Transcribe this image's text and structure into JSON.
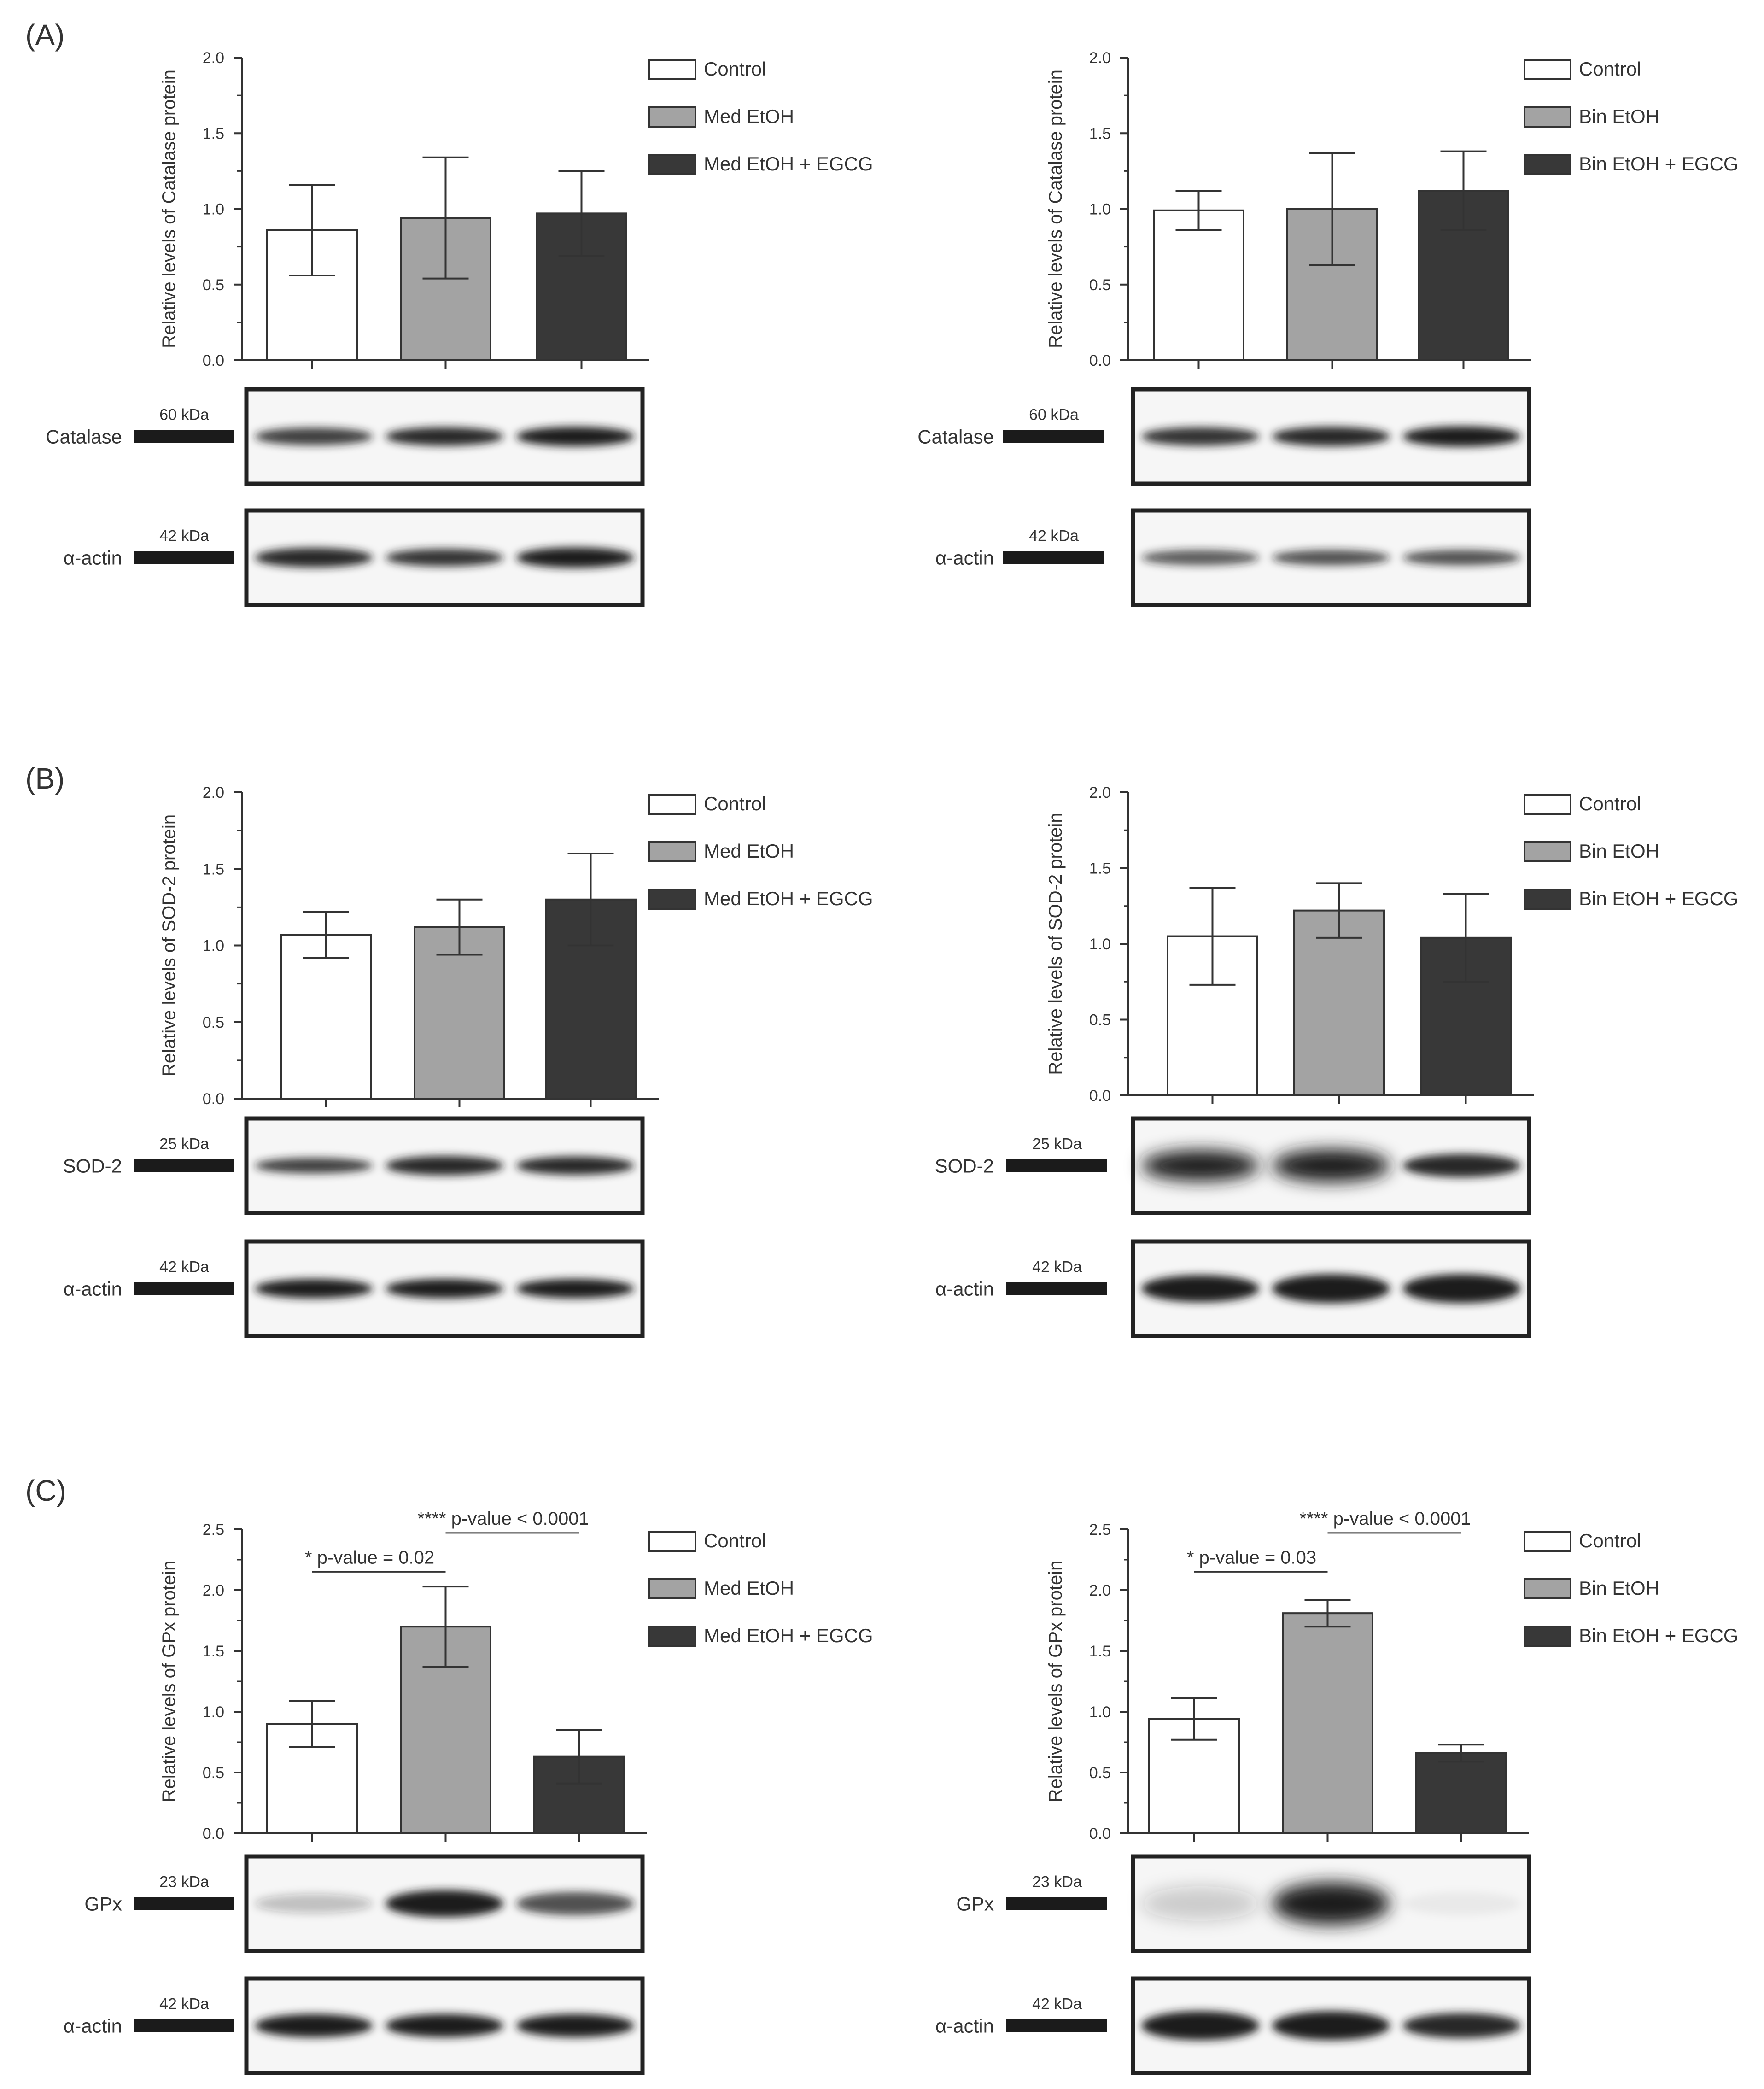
{
  "figure": {
    "colors": {
      "control": "#ffffff",
      "med_etoh": "#a3a3a3",
      "med_etoh_egcg": "#383838",
      "axis": "#333333",
      "band": "#1e1e1e"
    },
    "panels": [
      {
        "label": "(A)",
        "protein": "Catalase",
        "protein_kda": "60 kDa",
        "loading_control": "α-actin",
        "loading_kda": "42 kDa"
      },
      {
        "label": "(B)",
        "protein": "SOD-2",
        "protein_kda": "25 kDa",
        "loading_control": "α-actin",
        "loading_kda": "42 kDa"
      },
      {
        "label": "(C)",
        "protein": "GPx",
        "protein_kda": "23 kDa",
        "loading_control": "α-actin",
        "loading_kda": "42 kDa"
      }
    ]
  },
  "chart_data": [
    {
      "type": "bar",
      "panel": "(A)",
      "side": "left",
      "ylabel": "Relative levels of Catalase protein",
      "ylim": [
        0,
        2.0
      ],
      "yticks": [
        "0.0",
        "0.5",
        "1.0",
        "1.5",
        "2.0"
      ],
      "categories": [
        "Control",
        "Med EtOH",
        "Med EtOH + EGCG"
      ],
      "legend": [
        "Control",
        "Med EtOH",
        "Med EtOH + EGCG"
      ],
      "values": [
        0.86,
        0.94,
        0.97
      ],
      "errors": [
        0.3,
        0.4,
        0.28
      ],
      "annotations": []
    },
    {
      "type": "bar",
      "panel": "(A)",
      "side": "right",
      "ylabel": "Relative levels of Catalase protein",
      "ylim": [
        0,
        2.0
      ],
      "yticks": [
        "0.0",
        "0.5",
        "1.0",
        "1.5",
        "2.0"
      ],
      "categories": [
        "Control",
        "Bin EtOH",
        "Bin EtOH + EGCG"
      ],
      "legend": [
        "Control",
        "Bin EtOH",
        "Bin EtOH + EGCG"
      ],
      "values": [
        0.99,
        1.0,
        1.12
      ],
      "errors": [
        0.13,
        0.37,
        0.26
      ],
      "annotations": []
    },
    {
      "type": "bar",
      "panel": "(B)",
      "side": "left",
      "ylabel": "Relative levels of SOD-2 protein",
      "ylim": [
        0,
        2.0
      ],
      "yticks": [
        "0.0",
        "0.5",
        "1.0",
        "1.5",
        "2.0"
      ],
      "categories": [
        "Control",
        "Med EtOH",
        "Med EtOH + EGCG"
      ],
      "legend": [
        "Control",
        "Med EtOH",
        "Med EtOH + EGCG"
      ],
      "values": [
        1.07,
        1.12,
        1.3
      ],
      "errors": [
        0.15,
        0.18,
        0.3
      ],
      "annotations": []
    },
    {
      "type": "bar",
      "panel": "(B)",
      "side": "right",
      "ylabel": "Relative levels of SOD-2 protein",
      "ylim": [
        0,
        2.0
      ],
      "yticks": [
        "0.0",
        "0.5",
        "1.0",
        "1.5",
        "2.0"
      ],
      "categories": [
        "Control",
        "Bin EtOH",
        "Bin EtOH + EGCG"
      ],
      "legend": [
        "Control",
        "Bin EtOH",
        "Bin EtOH + EGCG"
      ],
      "values": [
        1.05,
        1.22,
        1.04
      ],
      "errors": [
        0.32,
        0.18,
        0.29
      ],
      "annotations": []
    },
    {
      "type": "bar",
      "panel": "(C)",
      "side": "left",
      "ylabel": "Relative levels of GPx protein",
      "ylim": [
        0,
        2.5
      ],
      "yticks": [
        "0.0",
        "0.5",
        "1.0",
        "1.5",
        "2.0",
        "2.5"
      ],
      "categories": [
        "Control",
        "Med EtOH",
        "Med EtOH + EGCG"
      ],
      "legend": [
        "Control",
        "Med EtOH",
        "Med EtOH + EGCG"
      ],
      "values": [
        0.9,
        1.7,
        0.63
      ],
      "errors": [
        0.19,
        0.33,
        0.22
      ],
      "annotations": [
        {
          "text": "* p-value = 0.02",
          "from": 0,
          "to": 1,
          "y": 2.15,
          "level": 0
        },
        {
          "text": "**** p-value < 0.0001",
          "from": 1,
          "to": 2,
          "y": 2.47,
          "level": 1
        }
      ]
    },
    {
      "type": "bar",
      "panel": "(C)",
      "side": "right",
      "ylabel": "Relative levels of GPx protein",
      "ylim": [
        0,
        2.5
      ],
      "yticks": [
        "0.0",
        "0.5",
        "1.0",
        "1.5",
        "2.0",
        "2.5"
      ],
      "categories": [
        "Control",
        "Bin EtOH",
        "Bin EtOH + EGCG"
      ],
      "legend": [
        "Control",
        "Bin EtOH",
        "Bin EtOH + EGCG"
      ],
      "values": [
        0.94,
        1.81,
        0.66
      ],
      "errors": [
        0.17,
        0.11,
        0.07
      ],
      "annotations": [
        {
          "text": "* p-value = 0.03",
          "from": 0,
          "to": 1,
          "y": 2.15,
          "level": 0
        },
        {
          "text": "**** p-value < 0.0001",
          "from": 1,
          "to": 2,
          "y": 2.47,
          "level": 1
        }
      ]
    }
  ],
  "blots": [
    {
      "panel": "(A)",
      "side": "left",
      "rows": [
        {
          "label": "Catalase",
          "kda": "60 kDa",
          "intensity": [
            0.85,
            0.95,
            1.0
          ],
          "thickness": [
            0.9,
            0.95,
            1.0
          ]
        },
        {
          "label": "α-actin",
          "kda": "42 kDa",
          "intensity": [
            0.95,
            0.9,
            1.0
          ],
          "thickness": [
            1.0,
            0.9,
            1.05
          ]
        }
      ]
    },
    {
      "panel": "(A)",
      "side": "right",
      "rows": [
        {
          "label": "Catalase",
          "kda": "60 kDa",
          "intensity": [
            0.9,
            0.95,
            1.0
          ],
          "thickness": [
            0.95,
            1.0,
            1.05
          ]
        },
        {
          "label": "α-actin",
          "kda": "42 kDa",
          "intensity": [
            0.7,
            0.75,
            0.75
          ],
          "thickness": [
            0.8,
            0.8,
            0.8
          ]
        }
      ]
    },
    {
      "panel": "(B)",
      "side": "left",
      "rows": [
        {
          "label": "SOD-2",
          "kda": "25 kDa",
          "intensity": [
            0.85,
            0.95,
            0.95
          ],
          "thickness": [
            0.8,
            1.0,
            0.95
          ]
        },
        {
          "label": "α-actin",
          "kda": "42 kDa",
          "intensity": [
            1.0,
            1.0,
            1.0
          ],
          "thickness": [
            1.0,
            1.0,
            1.0
          ]
        }
      ]
    },
    {
      "panel": "(B)",
      "side": "right",
      "rows": [
        {
          "label": "SOD-2",
          "kda": "25 kDa",
          "intensity": [
            1.0,
            1.0,
            0.95
          ],
          "thickness": [
            1.6,
            1.7,
            1.2
          ]
        },
        {
          "label": "α-actin",
          "kda": "42 kDa",
          "intensity": [
            1.0,
            1.0,
            1.0
          ],
          "thickness": [
            1.4,
            1.5,
            1.5
          ]
        }
      ]
    },
    {
      "panel": "(C)",
      "side": "left",
      "rows": [
        {
          "label": "GPx",
          "kda": "23 kDa",
          "intensity": [
            0.25,
            1.0,
            0.75
          ],
          "thickness": [
            1.0,
            1.4,
            1.2
          ]
        },
        {
          "label": "α-actin",
          "kda": "42 kDa",
          "intensity": [
            1.0,
            1.0,
            1.0
          ],
          "thickness": [
            1.2,
            1.2,
            1.2
          ]
        }
      ]
    },
    {
      "panel": "(C)",
      "side": "right",
      "rows": [
        {
          "label": "GPx",
          "kda": "23 kDa",
          "intensity": [
            0.2,
            1.0,
            0.05
          ],
          "thickness": [
            1.8,
            2.2,
            1.2
          ]
        },
        {
          "label": "α-actin",
          "kda": "42 kDa",
          "intensity": [
            1.0,
            1.0,
            0.95
          ],
          "thickness": [
            1.5,
            1.5,
            1.3
          ]
        }
      ]
    }
  ]
}
